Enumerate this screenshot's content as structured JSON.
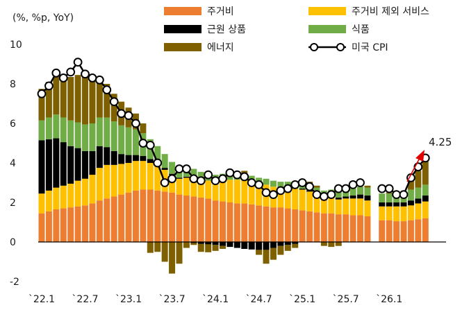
{
  "chart_data": {
    "type": "bar",
    "stacked": true,
    "title": "",
    "ylabel": "(%, %p, YoY)",
    "xlabel": "",
    "ylim": [
      -2,
      10
    ],
    "yticks": [
      "-2",
      "0",
      "2",
      "4",
      "6",
      "8",
      "10"
    ],
    "xtick_labels": [
      "`22.1",
      "`22.7",
      "`23.1",
      "`23.7",
      "`24.1",
      "`24.7",
      "`25.1",
      "`25.7",
      "`26.1"
    ],
    "xtick_index": [
      0,
      6,
      12,
      18,
      24,
      30,
      36,
      42,
      48
    ],
    "grid": false,
    "legend_position": "top",
    "annotation": "4.25",
    "months": 54,
    "series": [
      {
        "key": "shelter",
        "name": "주거비",
        "color": "#ED7D31",
        "values": [
          1.45,
          1.55,
          1.65,
          1.7,
          1.75,
          1.8,
          1.85,
          1.95,
          2.1,
          2.2,
          2.3,
          2.4,
          2.5,
          2.6,
          2.65,
          2.65,
          2.6,
          2.55,
          2.5,
          2.4,
          2.35,
          2.3,
          2.25,
          2.2,
          2.1,
          2.05,
          2.0,
          1.95,
          1.95,
          1.9,
          1.85,
          1.8,
          1.75,
          1.75,
          1.7,
          1.65,
          1.6,
          1.55,
          1.5,
          1.45,
          1.45,
          1.4,
          1.4,
          1.35,
          1.35,
          1.3,
          null,
          1.1,
          1.1,
          1.05,
          1.05,
          1.1,
          1.15,
          1.2
        ]
      },
      {
        "key": "services_ex_shelter",
        "name": "주거비 제외 서비스",
        "color": "#FFC000",
        "values": [
          1.0,
          1.05,
          1.1,
          1.15,
          1.2,
          1.3,
          1.35,
          1.45,
          1.65,
          1.7,
          1.6,
          1.55,
          1.5,
          1.5,
          1.45,
          1.35,
          1.25,
          1.1,
          0.9,
          0.8,
          0.9,
          1.0,
          0.95,
          0.9,
          1.0,
          1.1,
          1.15,
          1.2,
          1.2,
          1.15,
          1.1,
          1.1,
          1.05,
          1.0,
          1.0,
          1.05,
          1.05,
          1.0,
          0.9,
          0.8,
          0.8,
          0.75,
          0.8,
          0.85,
          0.85,
          0.8,
          null,
          0.7,
          0.7,
          0.75,
          0.75,
          0.75,
          0.8,
          0.85
        ]
      },
      {
        "key": "core_goods",
        "name": "근원 상품",
        "color": "#000000",
        "values": [
          2.7,
          2.6,
          2.5,
          2.2,
          1.9,
          1.65,
          1.4,
          1.2,
          1.1,
          0.9,
          0.7,
          0.5,
          0.4,
          0.3,
          0.25,
          0.2,
          0.15,
          0.1,
          0.05,
          0.05,
          0.05,
          -0.05,
          -0.1,
          -0.12,
          -0.15,
          -0.2,
          -0.25,
          -0.3,
          -0.35,
          -0.38,
          -0.4,
          -0.4,
          -0.3,
          -0.2,
          -0.15,
          -0.1,
          0.05,
          0.05,
          0.0,
          0.0,
          0.05,
          0.1,
          0.1,
          0.15,
          0.2,
          0.25,
          null,
          0.2,
          0.2,
          0.2,
          0.2,
          0.25,
          0.25,
          0.3
        ]
      },
      {
        "key": "food",
        "name": "식품",
        "color": "#70AD47",
        "values": [
          1.0,
          1.1,
          1.2,
          1.25,
          1.3,
          1.3,
          1.35,
          1.4,
          1.45,
          1.5,
          1.5,
          1.45,
          1.4,
          1.3,
          1.15,
          1.0,
          0.85,
          0.7,
          0.6,
          0.5,
          0.45,
          0.4,
          0.35,
          0.3,
          0.3,
          0.3,
          0.3,
          0.3,
          0.3,
          0.3,
          0.3,
          0.3,
          0.3,
          0.3,
          0.35,
          0.35,
          0.35,
          0.35,
          0.35,
          0.35,
          0.35,
          0.35,
          0.35,
          0.35,
          0.4,
          0.4,
          null,
          0.45,
          0.45,
          0.5,
          0.5,
          0.55,
          0.55,
          0.55
        ]
      },
      {
        "key": "energy",
        "name": "에너지",
        "color": "#7F6000",
        "values": [
          1.6,
          1.8,
          2.2,
          2.1,
          2.2,
          2.4,
          2.5,
          2.3,
          1.8,
          1.7,
          1.4,
          1.2,
          1.0,
          0.8,
          0.5,
          -0.55,
          -0.5,
          -1.0,
          -1.6,
          -1.1,
          -0.3,
          -0.1,
          -0.4,
          -0.4,
          -0.3,
          -0.15,
          0.05,
          0.1,
          0.15,
          0.0,
          -0.25,
          -0.7,
          -0.6,
          -0.45,
          -0.3,
          -0.2,
          0.05,
          0.1,
          0.1,
          -0.2,
          -0.25,
          -0.2,
          0.05,
          0.0,
          0.0,
          0.1,
          null,
          0.0,
          0.05,
          0.0,
          0.0,
          0.5,
          0.85,
          1.4
        ]
      },
      {
        "key": "cpi",
        "name": "미국 CPI",
        "color": "#000000",
        "type": "line",
        "values": [
          7.5,
          7.9,
          8.55,
          8.3,
          8.6,
          9.1,
          8.5,
          8.3,
          8.2,
          7.7,
          7.1,
          6.5,
          6.4,
          6.0,
          5.0,
          4.9,
          4.0,
          3.0,
          3.2,
          3.7,
          3.7,
          3.2,
          3.1,
          3.4,
          3.1,
          3.2,
          3.5,
          3.4,
          3.3,
          3.0,
          2.9,
          2.5,
          2.4,
          2.6,
          2.7,
          2.9,
          3.0,
          2.8,
          2.4,
          2.3,
          2.4,
          2.7,
          2.7,
          2.9,
          3.0,
          null,
          null,
          2.7,
          2.7,
          2.4,
          2.4,
          3.25,
          3.8,
          4.25
        ]
      }
    ]
  }
}
